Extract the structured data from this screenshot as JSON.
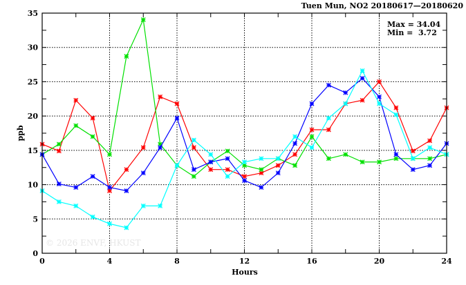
{
  "chart_data": {
    "type": "line",
    "title": "Tuen Mun, NO2 20180617—20180620",
    "xlabel": "Hours",
    "ylabel": "ppb",
    "xlim": [
      0,
      24
    ],
    "ylim": [
      0,
      35
    ],
    "xticks": [
      0,
      4,
      8,
      12,
      16,
      20,
      24
    ],
    "yticks": [
      0,
      5,
      10,
      15,
      20,
      25,
      30,
      35
    ],
    "grid": true,
    "annotations": {
      "max": "Max = 34.04",
      "min": "Min =  3.72"
    },
    "watermark": "© 2026  ENVF, HKUST",
    "x": [
      0,
      1,
      2,
      3,
      4,
      5,
      6,
      7,
      8,
      9,
      10,
      11,
      12,
      13,
      14,
      15,
      16,
      17,
      18,
      19,
      20,
      21,
      22,
      23,
      24
    ],
    "series": [
      {
        "name": "red",
        "color": "#ff0000",
        "values": [
          15.9,
          14.9,
          22.3,
          19.7,
          9.1,
          12.2,
          15.4,
          22.8,
          21.8,
          15.4,
          12.2,
          12.2,
          11.2,
          11.7,
          12.8,
          14.4,
          18.0,
          18.0,
          21.8,
          22.3,
          25.0,
          21.2,
          14.9,
          16.4,
          21.2
        ]
      },
      {
        "name": "green",
        "color": "#00e000",
        "values": [
          14.4,
          15.9,
          18.6,
          17.0,
          14.4,
          28.7,
          34.04,
          15.9,
          12.8,
          11.2,
          13.3,
          14.9,
          12.8,
          12.2,
          13.8,
          12.8,
          17.0,
          13.8,
          14.4,
          13.3,
          13.3,
          13.8,
          13.8,
          13.8,
          14.4
        ]
      },
      {
        "name": "blue",
        "color": "#0000ff",
        "values": [
          14.4,
          10.1,
          9.6,
          11.2,
          9.6,
          9.1,
          11.7,
          15.4,
          19.7,
          12.2,
          13.3,
          13.8,
          10.6,
          9.6,
          11.7,
          16.0,
          21.8,
          24.5,
          23.4,
          25.5,
          22.8,
          14.4,
          12.2,
          12.8,
          16.0
        ]
      },
      {
        "name": "cyan",
        "color": "#00ffff",
        "values": [
          9.1,
          7.5,
          6.9,
          5.3,
          4.3,
          3.72,
          6.9,
          6.9,
          12.8,
          16.5,
          14.4,
          11.2,
          13.3,
          13.8,
          13.8,
          17.0,
          15.4,
          19.7,
          21.8,
          26.6,
          21.8,
          20.2,
          13.8,
          15.4,
          14.4
        ]
      }
    ]
  }
}
